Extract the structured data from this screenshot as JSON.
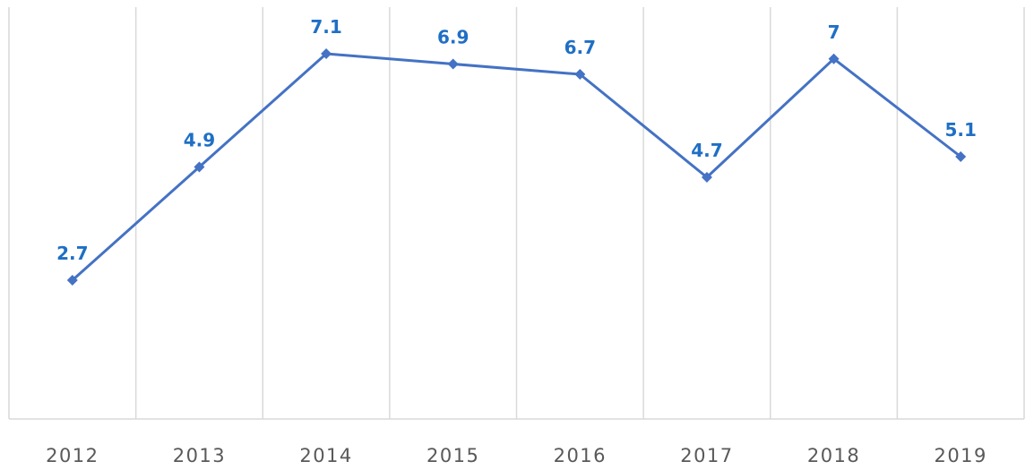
{
  "chart_data": {
    "type": "line",
    "title": "",
    "xlabel": "",
    "ylabel": "",
    "categories": [
      "2012",
      "2013",
      "2014",
      "2015",
      "2016",
      "2017",
      "2018",
      "2019"
    ],
    "series": [
      {
        "values": [
          2.7,
          4.9,
          7.1,
          6.9,
          6.7,
          4.7,
          7,
          5.1
        ],
        "labels": [
          "2.7",
          "4.9",
          "7.1",
          "6.9",
          "6.7",
          "4.7",
          "7",
          "5.1"
        ],
        "color": "#4472c4"
      }
    ],
    "label_color": "#1f6fc5",
    "ylim": [
      0,
      8
    ],
    "y_axis_visible": false,
    "vertical_grid": true,
    "horizontal_grid": false,
    "marker": "diamond",
    "legend": "none"
  }
}
